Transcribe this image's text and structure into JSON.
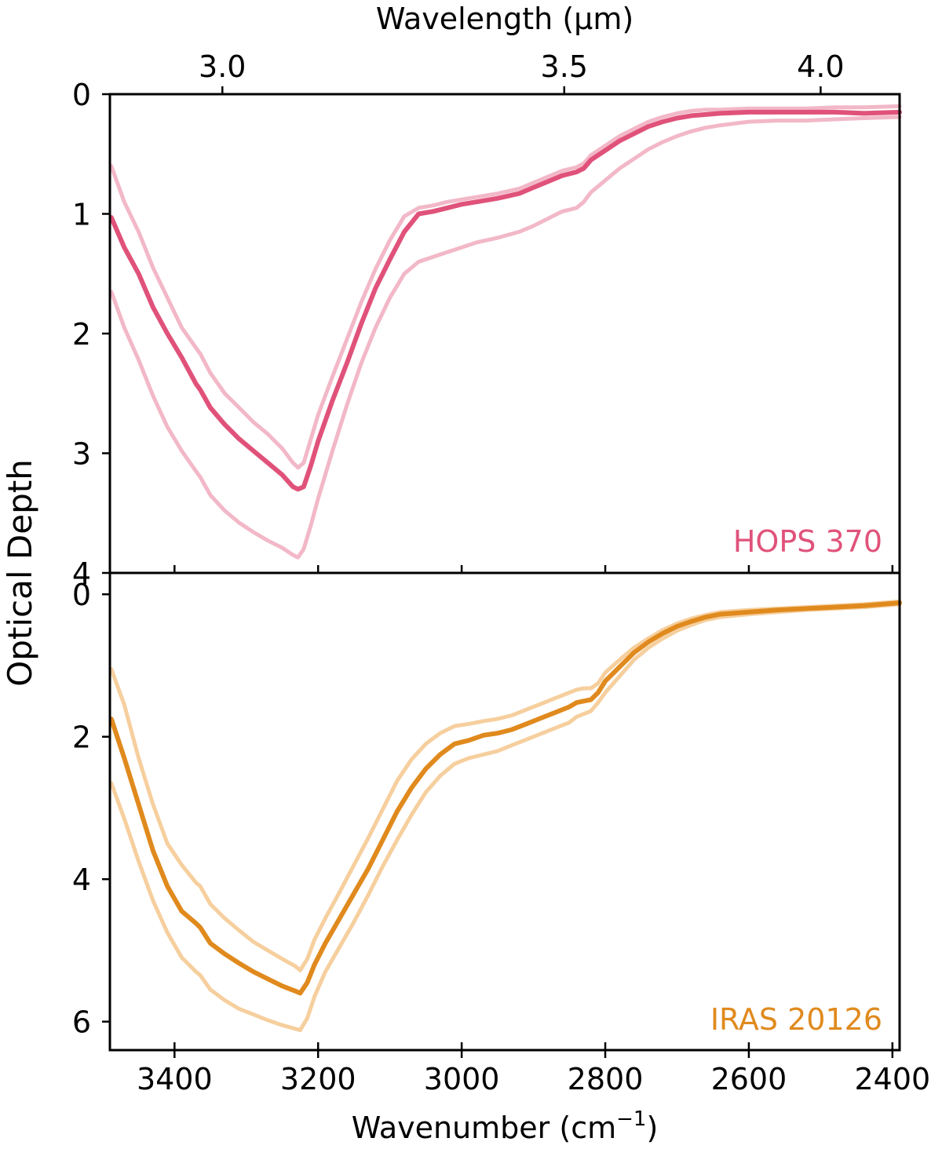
{
  "figure": {
    "top_axis_label": "Wavelength (µm)",
    "bottom_axis_label": "Wavenumber (cm",
    "bottom_axis_label_sup": "−1",
    "bottom_axis_label_end": ")",
    "shared_y_label": "Optical Depth"
  },
  "colors": {
    "hops_main": "#e0527a",
    "hops_band": "#f2b8c8",
    "iras_main": "#e08a1e",
    "iras_band": "#f6cf9e",
    "axes": "#000000"
  },
  "chart_data": [
    {
      "type": "line",
      "panel": "top",
      "annotation": "HOPS 370",
      "annotation_placement": "bottom-right",
      "xlim": [
        3490,
        2390
      ],
      "x_reversed": true,
      "ylim": [
        4,
        0
      ],
      "y_inverted": true,
      "yticks": [
        0,
        1,
        2,
        3,
        4
      ],
      "ytick_labels": [
        "0",
        "1",
        "2",
        "3",
        "4"
      ],
      "top_xticks_um": [
        3.0,
        3.5,
        4.0
      ],
      "top_xtick_labels": [
        "3.0",
        "3.5",
        "4.0"
      ],
      "x": [
        3488,
        3470,
        3450,
        3430,
        3410,
        3390,
        3370,
        3364,
        3350,
        3330,
        3310,
        3290,
        3270,
        3250,
        3235,
        3228,
        3220,
        3210,
        3200,
        3180,
        3160,
        3140,
        3120,
        3100,
        3080,
        3060,
        3040,
        3020,
        3000,
        2980,
        2950,
        2920,
        2900,
        2880,
        2860,
        2840,
        2830,
        2820,
        2800,
        2780,
        2760,
        2740,
        2720,
        2700,
        2680,
        2660,
        2640,
        2600,
        2560,
        2520,
        2480,
        2440,
        2390
      ],
      "series": [
        {
          "role": "main",
          "values": [
            1.03,
            1.28,
            1.5,
            1.78,
            2.0,
            2.2,
            2.42,
            2.47,
            2.62,
            2.76,
            2.88,
            2.98,
            3.08,
            3.18,
            3.28,
            3.3,
            3.28,
            3.1,
            2.9,
            2.56,
            2.25,
            1.92,
            1.62,
            1.38,
            1.15,
            1.0,
            0.98,
            0.95,
            0.92,
            0.9,
            0.87,
            0.83,
            0.78,
            0.73,
            0.68,
            0.65,
            0.62,
            0.55,
            0.47,
            0.39,
            0.33,
            0.27,
            0.23,
            0.2,
            0.18,
            0.17,
            0.16,
            0.15,
            0.15,
            0.15,
            0.15,
            0.16,
            0.15
          ]
        },
        {
          "role": "upper",
          "values": [
            0.6,
            0.9,
            1.15,
            1.45,
            1.7,
            1.95,
            2.12,
            2.17,
            2.33,
            2.5,
            2.62,
            2.74,
            2.84,
            2.96,
            3.08,
            3.12,
            3.08,
            2.88,
            2.68,
            2.36,
            2.05,
            1.74,
            1.46,
            1.22,
            1.02,
            0.95,
            0.93,
            0.9,
            0.88,
            0.86,
            0.83,
            0.79,
            0.74,
            0.69,
            0.64,
            0.61,
            0.58,
            0.51,
            0.43,
            0.35,
            0.29,
            0.23,
            0.19,
            0.16,
            0.14,
            0.13,
            0.13,
            0.12,
            0.12,
            0.12,
            0.11,
            0.11,
            0.1
          ]
        },
        {
          "role": "lower",
          "values": [
            1.65,
            1.95,
            2.22,
            2.52,
            2.78,
            2.98,
            3.15,
            3.2,
            3.35,
            3.48,
            3.58,
            3.66,
            3.73,
            3.79,
            3.85,
            3.87,
            3.8,
            3.6,
            3.38,
            2.98,
            2.6,
            2.25,
            1.95,
            1.7,
            1.5,
            1.4,
            1.36,
            1.32,
            1.28,
            1.24,
            1.2,
            1.15,
            1.1,
            1.04,
            0.98,
            0.95,
            0.9,
            0.82,
            0.72,
            0.62,
            0.54,
            0.46,
            0.4,
            0.35,
            0.31,
            0.28,
            0.26,
            0.23,
            0.22,
            0.22,
            0.21,
            0.2,
            0.19
          ]
        }
      ]
    },
    {
      "type": "line",
      "panel": "bottom",
      "annotation": "IRAS 20126",
      "annotation_placement": "bottom-right",
      "xlim": [
        3490,
        2390
      ],
      "x_reversed": true,
      "ylim": [
        6.4,
        -0.3
      ],
      "y_inverted": true,
      "yticks": [
        0,
        2,
        4,
        6
      ],
      "ytick_labels": [
        "0",
        "2",
        "4",
        "6"
      ],
      "xticks": [
        3400,
        3200,
        3000,
        2800,
        2600,
        2400
      ],
      "xtick_labels": [
        "3400",
        "3200",
        "3000",
        "2800",
        "2600",
        "2400"
      ],
      "x": [
        3488,
        3470,
        3450,
        3430,
        3410,
        3390,
        3370,
        3364,
        3350,
        3330,
        3310,
        3290,
        3270,
        3250,
        3232,
        3225,
        3215,
        3205,
        3190,
        3170,
        3150,
        3130,
        3110,
        3090,
        3070,
        3050,
        3030,
        3010,
        2990,
        2970,
        2950,
        2930,
        2910,
        2890,
        2870,
        2850,
        2840,
        2830,
        2820,
        2810,
        2800,
        2780,
        2760,
        2740,
        2720,
        2700,
        2680,
        2660,
        2640,
        2600,
        2560,
        2520,
        2480,
        2440,
        2390
      ],
      "series": [
        {
          "role": "main",
          "values": [
            1.75,
            2.3,
            2.95,
            3.6,
            4.1,
            4.45,
            4.62,
            4.68,
            4.9,
            5.05,
            5.18,
            5.3,
            5.4,
            5.5,
            5.57,
            5.6,
            5.45,
            5.2,
            4.9,
            4.55,
            4.2,
            3.85,
            3.45,
            3.05,
            2.72,
            2.45,
            2.25,
            2.1,
            2.05,
            1.98,
            1.95,
            1.9,
            1.82,
            1.74,
            1.66,
            1.58,
            1.52,
            1.5,
            1.48,
            1.38,
            1.22,
            1.02,
            0.82,
            0.67,
            0.55,
            0.45,
            0.38,
            0.32,
            0.28,
            0.25,
            0.22,
            0.2,
            0.18,
            0.16,
            0.12
          ]
        },
        {
          "role": "upper",
          "values": [
            1.05,
            1.55,
            2.3,
            2.95,
            3.5,
            3.8,
            4.05,
            4.1,
            4.35,
            4.55,
            4.72,
            4.88,
            5.0,
            5.12,
            5.22,
            5.28,
            5.12,
            4.85,
            4.55,
            4.18,
            3.8,
            3.42,
            3.02,
            2.62,
            2.32,
            2.1,
            1.95,
            1.85,
            1.82,
            1.78,
            1.75,
            1.7,
            1.62,
            1.54,
            1.46,
            1.38,
            1.34,
            1.32,
            1.32,
            1.25,
            1.1,
            0.92,
            0.75,
            0.62,
            0.5,
            0.41,
            0.34,
            0.29,
            0.25,
            0.22,
            0.2,
            0.18,
            0.16,
            0.14,
            0.1
          ]
        },
        {
          "role": "lower",
          "values": [
            2.65,
            3.15,
            3.75,
            4.3,
            4.75,
            5.1,
            5.3,
            5.35,
            5.55,
            5.7,
            5.82,
            5.9,
            5.98,
            6.05,
            6.1,
            6.12,
            5.95,
            5.65,
            5.3,
            4.95,
            4.6,
            4.22,
            3.82,
            3.45,
            3.1,
            2.78,
            2.55,
            2.38,
            2.3,
            2.25,
            2.2,
            2.12,
            2.04,
            1.96,
            1.88,
            1.8,
            1.72,
            1.68,
            1.64,
            1.52,
            1.38,
            1.15,
            0.92,
            0.75,
            0.62,
            0.51,
            0.43,
            0.36,
            0.32,
            0.28,
            0.25,
            0.22,
            0.2,
            0.18,
            0.14
          ]
        }
      ]
    }
  ]
}
